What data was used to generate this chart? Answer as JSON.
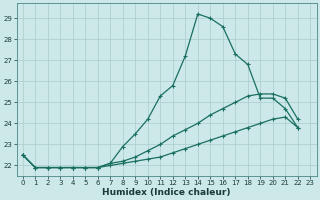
{
  "xlabel": "Humidex (Indice chaleur)",
  "bg_color": "#cce8e8",
  "grid_color": "#aacccc",
  "line_color": "#1a7060",
  "xlim": [
    -0.5,
    23.5
  ],
  "ylim": [
    21.5,
    29.7
  ],
  "yticks": [
    22,
    23,
    24,
    25,
    26,
    27,
    28,
    29
  ],
  "xticks": [
    0,
    1,
    2,
    3,
    4,
    5,
    6,
    7,
    8,
    9,
    10,
    11,
    12,
    13,
    14,
    15,
    16,
    17,
    18,
    19,
    20,
    21,
    22,
    23
  ],
  "series": [
    {
      "x": [
        0,
        1,
        2,
        3,
        4,
        5,
        6,
        7,
        8,
        9,
        10,
        11,
        12,
        13,
        14,
        15,
        16,
        17,
        18,
        19,
        20,
        21,
        22
      ],
      "y": [
        22.5,
        21.9,
        21.9,
        21.9,
        21.9,
        21.9,
        21.9,
        22.1,
        22.9,
        23.5,
        24.2,
        25.3,
        25.8,
        27.2,
        29.2,
        29.0,
        28.6,
        27.3,
        26.8,
        25.2,
        25.2,
        24.7,
        23.8
      ]
    },
    {
      "x": [
        0,
        1,
        2,
        3,
        4,
        5,
        6,
        7,
        8,
        9,
        10,
        11,
        12,
        13,
        14,
        15,
        16,
        17,
        18,
        19,
        20,
        21,
        22
      ],
      "y": [
        22.5,
        21.9,
        21.9,
        21.9,
        21.9,
        21.9,
        21.9,
        22.1,
        22.2,
        22.4,
        22.7,
        23.0,
        23.4,
        23.7,
        24.0,
        24.4,
        24.7,
        25.0,
        25.3,
        25.4,
        25.4,
        25.2,
        24.2
      ]
    },
    {
      "x": [
        0,
        1,
        2,
        3,
        4,
        5,
        6,
        7,
        8,
        9,
        10,
        11,
        12,
        13,
        14,
        15,
        16,
        17,
        18,
        19,
        20,
        21,
        22
      ],
      "y": [
        22.5,
        21.9,
        21.9,
        21.9,
        21.9,
        21.9,
        21.9,
        22.0,
        22.1,
        22.2,
        22.3,
        22.4,
        22.6,
        22.8,
        23.0,
        23.2,
        23.4,
        23.6,
        23.8,
        24.0,
        24.2,
        24.3,
        23.8
      ]
    }
  ]
}
